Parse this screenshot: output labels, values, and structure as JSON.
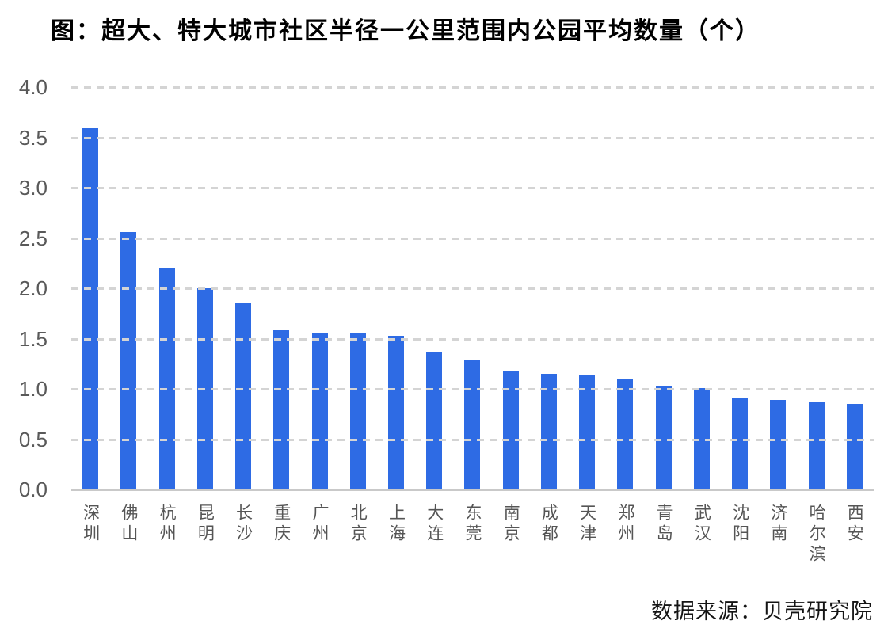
{
  "page": {
    "title": "图：超大、特大城市社区半径一公里范围内公园平均数量（个）",
    "source": "数据来源：贝壳研究院"
  },
  "axis": {
    "y_tick_labels": [
      "0.0",
      "0.5",
      "1.0",
      "1.5",
      "2.0",
      "2.5",
      "3.0",
      "3.5",
      "4.0"
    ]
  },
  "colors": {
    "bar": "#2e6be4",
    "title_text": "#000000",
    "axis_label": "#595959",
    "category_label": "#555555",
    "gridline": "#d4d4d4",
    "baseline": "#c9c9c9",
    "source_text": "#141414",
    "background": "#ffffff"
  },
  "chart_data": {
    "type": "bar",
    "title": "图：超大、特大城市社区半径一公里范围内公园平均数量（个）",
    "categories": [
      "深圳",
      "佛山",
      "杭州",
      "昆明",
      "长沙",
      "重庆",
      "广州",
      "北京",
      "上海",
      "大连",
      "东莞",
      "南京",
      "成都",
      "天津",
      "郑州",
      "青岛",
      "武汉",
      "沈阳",
      "济南",
      "哈尔滨",
      "西安"
    ],
    "values": [
      3.59,
      2.56,
      2.2,
      2.0,
      1.85,
      1.58,
      1.55,
      1.55,
      1.53,
      1.37,
      1.29,
      1.18,
      1.15,
      1.13,
      1.1,
      1.02,
      1.01,
      0.91,
      0.89,
      0.87,
      0.85
    ],
    "xlabel": "",
    "ylabel": "",
    "ylim": [
      0,
      4
    ],
    "y_tick_step": 0.5,
    "grid": "horizontal-dashed",
    "legend": "none",
    "bar_color": "#2e6be4",
    "source": "数据来源：贝壳研究院"
  }
}
